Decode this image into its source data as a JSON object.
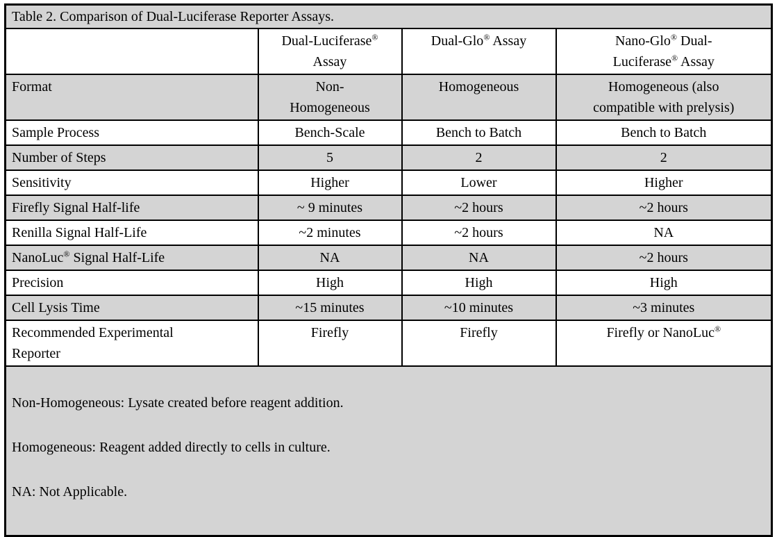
{
  "title": "Table 2. Comparison of Dual-Luciferase Reporter Assays.",
  "table": {
    "columns": [
      "",
      "Dual-Luciferase®\nAssay",
      "Dual-Glo® Assay",
      "Nano-Glo® Dual-\nLuciferase® Assay"
    ],
    "rows": [
      {
        "label": "Format",
        "cells": [
          "Non-\nHomogeneous",
          "Homogeneous",
          "Homogeneous (also\ncompatible with prelysis)"
        ]
      },
      {
        "label": "Sample Process",
        "cells": [
          "Bench-Scale",
          "Bench to Batch",
          "Bench to Batch"
        ]
      },
      {
        "label": "Number of Steps",
        "cells": [
          "5",
          "2",
          "2"
        ]
      },
      {
        "label": "Sensitivity",
        "cells": [
          "Higher",
          "Lower",
          "Higher"
        ]
      },
      {
        "label": "Firefly Signal Half-life",
        "cells": [
          "~ 9 minutes",
          "~2 hours",
          "~2 hours"
        ]
      },
      {
        "label": "Renilla Signal Half-Life",
        "cells": [
          "~2 minutes",
          "~2 hours",
          "NA"
        ]
      },
      {
        "label": "NanoLuc® Signal Half-Life",
        "cells": [
          "NA",
          "NA",
          "~2 hours"
        ]
      },
      {
        "label": "Precision",
        "cells": [
          "High",
          "High",
          "High"
        ]
      },
      {
        "label": "Cell Lysis Time",
        "cells": [
          "~15 minutes",
          "~10 minutes",
          "~3 minutes"
        ]
      },
      {
        "label": "Recommended Experimental\nReporter",
        "cells": [
          "Firefly",
          "Firefly",
          "Firefly or NanoLuc®"
        ]
      }
    ]
  },
  "footnotes": [
    "Non-Homogeneous: Lysate created before reagent addition.",
    "Homogeneous: Reagent added directly to cells in culture.",
    "NA: Not Applicable."
  ],
  "colors": {
    "shaded_row": "#d4d4d4",
    "border": "#000000",
    "background": "#ffffff",
    "text": "#000000"
  }
}
